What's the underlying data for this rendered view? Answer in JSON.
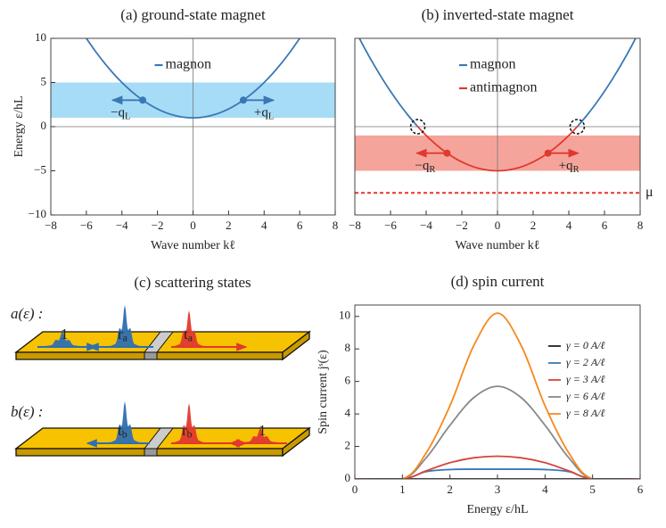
{
  "chart_data": [
    {
      "type": "line",
      "title": "(a) ground-state magnet",
      "xlabel": "Wave number kℓ",
      "ylabel": "Energy ε/hL",
      "xlim": [
        -8,
        8
      ],
      "ylim": [
        -10,
        10
      ],
      "xticks": [
        {
          "value": -8,
          "label": "−8"
        },
        {
          "value": -6,
          "label": "−6"
        },
        {
          "value": -4,
          "label": "−4"
        },
        {
          "value": -2,
          "label": "−2"
        },
        0,
        2,
        4,
        6,
        8
      ],
      "yticks": [
        {
          "value": -10,
          "label": "−10"
        },
        {
          "value": -5,
          "label": "−5"
        },
        0,
        5,
        10
      ],
      "zero_lines": true,
      "legend": "upper center",
      "x": [
        -6,
        -5.5,
        -5,
        -4.5,
        -4,
        -3.5,
        -3,
        -2.5,
        -2,
        -1.5,
        -1,
        -0.5,
        0,
        0.5,
        1,
        1.5,
        2,
        2.5,
        3,
        3.5,
        4,
        4.5,
        5,
        5.5,
        6
      ],
      "series": [
        {
          "name": "magnon",
          "color": "#3a78b5",
          "values": [
            10,
            8.5625,
            7.25,
            6.0625,
            5,
            4.0625,
            3.25,
            2.5625,
            2,
            1.5625,
            1.25,
            1.0625,
            1,
            1.0625,
            1.25,
            1.5625,
            2,
            2.5625,
            3.25,
            4.0625,
            5,
            6.0625,
            7.25,
            8.5625,
            10
          ]
        }
      ],
      "band": {
        "range": [
          1,
          5
        ],
        "color": "#a6dcf6"
      },
      "points": [
        {
          "x": -2.83,
          "y": 3,
          "label": "−q",
          "subscript": "L",
          "direction": "left",
          "color": "#3a78b5"
        },
        {
          "x": 2.83,
          "y": 3,
          "label": "+q",
          "subscript": "L",
          "direction": "right",
          "color": "#3a78b5"
        }
      ]
    },
    {
      "type": "line",
      "title": "(b) inverted-state magnet",
      "xlabel": "Wave number kℓ",
      "xlim": [
        -8,
        8
      ],
      "ylim": [
        -10,
        10
      ],
      "xticks": [
        {
          "value": -8,
          "label": "−8"
        },
        {
          "value": -6,
          "label": "−6"
        },
        {
          "value": -4,
          "label": "−4"
        },
        {
          "value": -2,
          "label": "−2"
        },
        0,
        2,
        4,
        6,
        8
      ],
      "zero_lines": true,
      "legend": "upper center",
      "x": [
        -8,
        -7.5,
        -7,
        -6.5,
        -6,
        -5.5,
        -5,
        -4.5,
        -4,
        -3.5,
        -3,
        -2.5,
        -2,
        -1.5,
        -1,
        -0.5,
        0,
        0.5,
        1,
        1.5,
        2,
        2.5,
        3,
        3.5,
        4,
        4.5,
        5,
        5.5,
        6,
        6.5,
        7,
        7.5,
        8
      ],
      "series": [
        {
          "name": "magnon",
          "color": "#3a78b5",
          "values": [
            11,
            9.0625,
            7.25,
            5.5625,
            4,
            2.5625,
            1.25,
            0.0625,
            null,
            null,
            null,
            null,
            null,
            null,
            null,
            null,
            null,
            null,
            null,
            null,
            null,
            null,
            null,
            null,
            null,
            0.0625,
            1.25,
            2.5625,
            4,
            5.5625,
            7.25,
            9.0625,
            11
          ]
        },
        {
          "name": "antimagnon",
          "color": "#e0392e",
          "values": [
            null,
            null,
            null,
            null,
            null,
            null,
            null,
            0.0625,
            -1,
            -1.9375,
            -2.75,
            -3.4375,
            -4,
            -4.4375,
            -4.75,
            -4.9375,
            -5,
            -4.9375,
            -4.75,
            -4.4375,
            -4,
            -3.4375,
            -2.75,
            -1.9375,
            -1,
            0.0625,
            null,
            null,
            null,
            null,
            null,
            null,
            null
          ]
        }
      ],
      "band": {
        "range": [
          -5,
          -1
        ],
        "color": "#f5a49b"
      },
      "points": [
        {
          "x": -2.83,
          "y": -3,
          "label": "−q",
          "subscript": "R",
          "direction": "left",
          "color": "#e0392e"
        },
        {
          "x": 2.83,
          "y": -3,
          "label": "+q",
          "subscript": "R",
          "direction": "right",
          "color": "#e0392e"
        }
      ],
      "crossings": [
        -4.47,
        4.47
      ],
      "hline": {
        "value": -7.5,
        "label": "μ",
        "color": "#e8332a"
      }
    },
    {
      "type": "line",
      "title": "(d) spin current",
      "xlabel": "Energy ε/hL",
      "ylabel": "Spin current jˢ(ε)",
      "xlim": [
        0,
        6
      ],
      "ylim": [
        0,
        10.7
      ],
      "xticks": [
        0,
        1,
        2,
        3,
        4,
        5,
        6
      ],
      "yticks": [
        0,
        2,
        4,
        6,
        8,
        10
      ],
      "legend": "upper right",
      "x": [
        0,
        1,
        1.5,
        2,
        2.5,
        3,
        3.5,
        4,
        4.5,
        5,
        6
      ],
      "series": [
        {
          "name": "γ = 0 A/ℓ",
          "color": "#222222",
          "values": [
            0,
            0,
            0,
            0,
            0,
            0,
            0,
            0,
            0,
            0,
            0
          ]
        },
        {
          "name": "γ = 2 A/ℓ",
          "color": "#3a78b5",
          "values": [
            0,
            0,
            0.45,
            0.58,
            0.6,
            0.6,
            0.6,
            0.58,
            0.45,
            0,
            0
          ]
        },
        {
          "name": "γ = 3 A/ℓ",
          "color": "#d6453d",
          "values": [
            0,
            0,
            0.5,
            1.0,
            1.3,
            1.4,
            1.3,
            1.0,
            0.5,
            0,
            0
          ]
        },
        {
          "name": "γ = 6 A/ℓ",
          "color": "#888888",
          "values": [
            0,
            0,
            1.3,
            3.3,
            5,
            5.7,
            5,
            3.3,
            1.3,
            0,
            0
          ]
        },
        {
          "name": "γ = 8 A/ℓ",
          "color": "#f5891f",
          "values": [
            0,
            0,
            1.6,
            4.5,
            8.2,
            10.2,
            8.2,
            4.5,
            1.6,
            0,
            0
          ]
        }
      ]
    }
  ],
  "diagram": {
    "title": "(c) scattering states",
    "rows": [
      {
        "label": "a(ε) :",
        "color": "#2f6fb0",
        "packets": [
          {
            "label": "1",
            "subscript": ""
          },
          {
            "label": "r",
            "subscript": "a"
          },
          {
            "label": "t",
            "subscript": "a"
          }
        ]
      },
      {
        "label": "b(ε) :",
        "color": "#e0392e",
        "packets": [
          {
            "label": "t",
            "subscript": "b"
          },
          {
            "label": "r",
            "subscript": "b"
          },
          {
            "label": "1",
            "subscript": ""
          }
        ]
      }
    ]
  }
}
